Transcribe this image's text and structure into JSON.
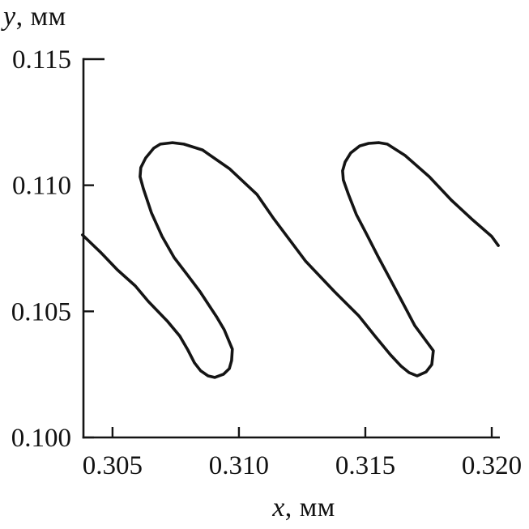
{
  "figure": {
    "background": "#ffffff",
    "ink_color": "#141414"
  },
  "chart_data": {
    "type": "line",
    "title": "",
    "xlabel_var": "x",
    "xlabel_rest": ", мм",
    "ylabel_var": "y",
    "ylabel_rest": ", мм",
    "xlim": [
      0.30385,
      0.32032
    ],
    "ylim": [
      0.1,
      0.115
    ],
    "grid": false,
    "legend": null,
    "x_ticks": [
      {
        "v": 0.305,
        "label": "0.305",
        "len": 13
      },
      {
        "v": 0.31,
        "label": "0.310",
        "len": 13
      },
      {
        "v": 0.315,
        "label": "0.315",
        "len": 13
      },
      {
        "v": 0.32,
        "label": "0.320",
        "len": 13
      }
    ],
    "y_ticks": [
      {
        "v": 0.1,
        "label": "0.100",
        "len": 13
      },
      {
        "v": 0.105,
        "label": "0.105",
        "len": 13
      },
      {
        "v": 0.11,
        "label": "0.110",
        "len": 13
      },
      {
        "v": 0.115,
        "label": "0.115",
        "len": 26
      }
    ],
    "series": [
      {
        "name": "trajectory",
        "points": [
          [
            0.30381,
            0.10803
          ],
          [
            0.30455,
            0.10732
          ],
          [
            0.30519,
            0.10665
          ],
          [
            0.3059,
            0.10601
          ],
          [
            0.30641,
            0.1054
          ],
          [
            0.30718,
            0.1046
          ],
          [
            0.30766,
            0.10402
          ],
          [
            0.30798,
            0.10347
          ],
          [
            0.30824,
            0.10296
          ],
          [
            0.30849,
            0.10264
          ],
          [
            0.30878,
            0.10244
          ],
          [
            0.30904,
            0.10238
          ],
          [
            0.30939,
            0.10251
          ],
          [
            0.30962,
            0.10273
          ],
          [
            0.30971,
            0.10305
          ],
          [
            0.30974,
            0.1035
          ],
          [
            0.30942,
            0.10427
          ],
          [
            0.30913,
            0.10476
          ],
          [
            0.30846,
            0.10578
          ],
          [
            0.30798,
            0.10642
          ],
          [
            0.30744,
            0.10713
          ],
          [
            0.30696,
            0.10797
          ],
          [
            0.30654,
            0.1089
          ],
          [
            0.30622,
            0.10986
          ],
          [
            0.30609,
            0.11034
          ],
          [
            0.30612,
            0.1107
          ],
          [
            0.30631,
            0.11108
          ],
          [
            0.30663,
            0.11147
          ],
          [
            0.30689,
            0.11163
          ],
          [
            0.30737,
            0.11169
          ],
          [
            0.30782,
            0.11163
          ],
          [
            0.30856,
            0.1114
          ],
          [
            0.30962,
            0.11066
          ],
          [
            0.31071,
            0.10964
          ],
          [
            0.31138,
            0.10867
          ],
          [
            0.31263,
            0.107
          ],
          [
            0.31378,
            0.10578
          ],
          [
            0.31474,
            0.10482
          ],
          [
            0.31538,
            0.10402
          ],
          [
            0.31599,
            0.10328
          ],
          [
            0.31641,
            0.10283
          ],
          [
            0.31673,
            0.10257
          ],
          [
            0.31705,
            0.10244
          ],
          [
            0.3174,
            0.1026
          ],
          [
            0.31763,
            0.10289
          ],
          [
            0.31769,
            0.10344
          ],
          [
            0.31696,
            0.10443
          ],
          [
            0.31647,
            0.10536
          ],
          [
            0.31599,
            0.10626
          ],
          [
            0.31551,
            0.10716
          ],
          [
            0.31503,
            0.1081
          ],
          [
            0.31465,
            0.10883
          ],
          [
            0.31433,
            0.10964
          ],
          [
            0.31413,
            0.11021
          ],
          [
            0.3141,
            0.11057
          ],
          [
            0.3142,
            0.11092
          ],
          [
            0.31442,
            0.11128
          ],
          [
            0.31478,
            0.11156
          ],
          [
            0.31513,
            0.11166
          ],
          [
            0.31554,
            0.11169
          ],
          [
            0.31587,
            0.11163
          ],
          [
            0.31657,
            0.11118
          ],
          [
            0.31753,
            0.11034
          ],
          [
            0.3184,
            0.10941
          ],
          [
            0.3192,
            0.10867
          ],
          [
            0.32,
            0.10797
          ],
          [
            0.32026,
            0.10761
          ]
        ]
      }
    ]
  }
}
